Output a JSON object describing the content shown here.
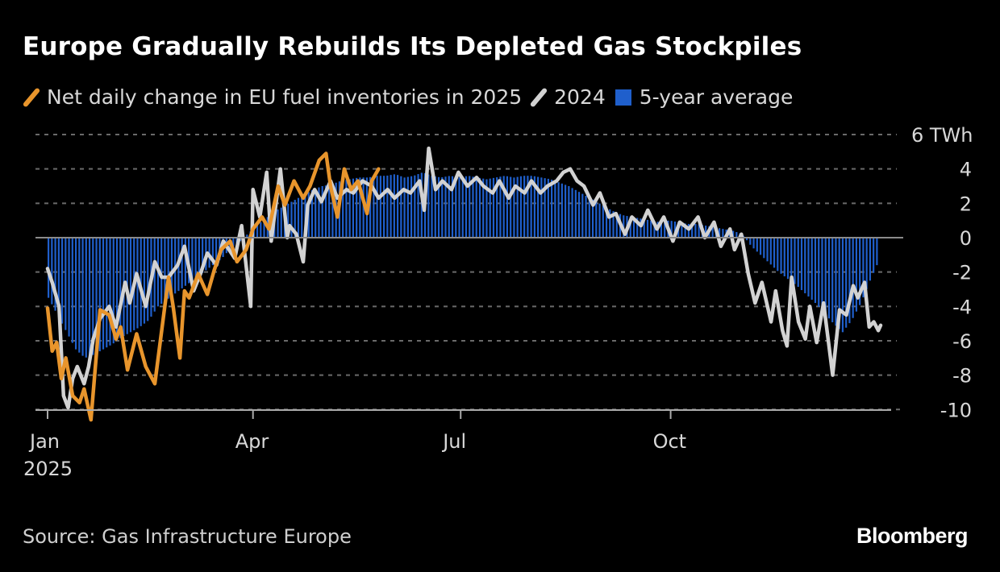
{
  "title": "Europe Gradually Rebuilds Its Depleted Gas Stockpiles",
  "source": "Source: Gas Infrastructure Europe",
  "logo": "Bloomberg",
  "colors": {
    "s2025": "#e8952c",
    "s2024": "#d2d2d2",
    "avg": "#1f5fcc",
    "grid": "#6a6a6a",
    "zero": "#8a8a8a",
    "text": "#d8d8d8"
  },
  "chart_data": {
    "type": "line",
    "ylabel": "TWh",
    "ylim": [
      -10,
      6
    ],
    "yticks": [
      6,
      4,
      2,
      0,
      -2,
      -4,
      -6,
      -8,
      -10
    ],
    "ytick_labels": [
      "6 TWh",
      "4",
      "2",
      "0",
      "-2",
      "-4",
      "-6",
      "-8",
      "-10"
    ],
    "xticks": [
      {
        "day": 0,
        "label": "Jan",
        "sublabel": "2025"
      },
      {
        "day": 90,
        "label": "Apr"
      },
      {
        "day": 181,
        "label": "Jul"
      },
      {
        "day": 273,
        "label": "Oct"
      }
    ],
    "xlim_days": [
      0,
      365
    ],
    "grid": true,
    "legend": "top",
    "series": [
      {
        "name": "Net daily change in EU fuel inventories in 2025",
        "kind": "line",
        "x_day": [
          0,
          2,
          4,
          6,
          8,
          11,
          14,
          16,
          19,
          23,
          27,
          30,
          32,
          35,
          39,
          43,
          47,
          50,
          53,
          55,
          58,
          60,
          62,
          66,
          70,
          73,
          76,
          80,
          83,
          87,
          90,
          94,
          97,
          101,
          104,
          108,
          112,
          115,
          119,
          122,
          124,
          127,
          130,
          133,
          136,
          140,
          142,
          145
        ],
        "values": [
          -4.1,
          -6.6,
          -6.1,
          -8.2,
          -7.0,
          -9.2,
          -9.6,
          -8.8,
          -10.6,
          -4.2,
          -4.5,
          -5.9,
          -5.2,
          -7.7,
          -5.6,
          -7.5,
          -8.5,
          -5.4,
          -2.3,
          -4.0,
          -7.0,
          -3.1,
          -3.5,
          -2.1,
          -3.3,
          -1.9,
          -0.7,
          -0.2,
          -1.4,
          -0.7,
          0.5,
          1.2,
          0.5,
          3.0,
          1.9,
          3.3,
          2.3,
          3.0,
          4.5,
          4.9,
          3.0,
          1.2,
          4.0,
          2.8,
          3.3,
          1.4,
          3.3,
          4.0
        ]
      },
      {
        "name": "2024",
        "kind": "line",
        "x_day": [
          0,
          2,
          5,
          7,
          9,
          11,
          13,
          16,
          18,
          20,
          23,
          27,
          30,
          34,
          36,
          39,
          43,
          47,
          50,
          53,
          57,
          60,
          64,
          67,
          70,
          74,
          77,
          82,
          85,
          89,
          90,
          93,
          96,
          98,
          102,
          105,
          106,
          109,
          112,
          114,
          117,
          120,
          124,
          127,
          131,
          134,
          138,
          142,
          145,
          149,
          152,
          156,
          159,
          163,
          165,
          167,
          170,
          173,
          177,
          180,
          184,
          188,
          191,
          195,
          198,
          202,
          205,
          209,
          212,
          216,
          219,
          223,
          226,
          229,
          232,
          235,
          239,
          242,
          246,
          249,
          253,
          256,
          260,
          263,
          267,
          270,
          274,
          277,
          281,
          285,
          288,
          292,
          295,
          299,
          301,
          304,
          307,
          310,
          313,
          317,
          319,
          322,
          324,
          326,
          329,
          332,
          334,
          337,
          340,
          344,
          347,
          350,
          353,
          355,
          358,
          360,
          362,
          364,
          365
        ],
        "values": [
          -1.8,
          -2.6,
          -4.0,
          -9.2,
          -9.9,
          -8.2,
          -7.5,
          -8.5,
          -7.5,
          -5.9,
          -4.7,
          -4.0,
          -5.2,
          -2.6,
          -3.8,
          -2.1,
          -4.0,
          -1.4,
          -2.3,
          -2.3,
          -1.6,
          -0.5,
          -3.1,
          -2.1,
          -0.9,
          -1.6,
          -0.2,
          -1.2,
          0.7,
          -4.0,
          2.8,
          1.2,
          3.8,
          -0.2,
          4.0,
          0.0,
          0.7,
          0.2,
          -1.4,
          1.9,
          2.8,
          2.1,
          3.3,
          2.3,
          2.8,
          2.6,
          3.3,
          3.0,
          2.3,
          2.8,
          2.3,
          2.8,
          2.6,
          3.3,
          1.6,
          5.2,
          2.8,
          3.3,
          2.8,
          3.8,
          3.0,
          3.5,
          3.0,
          2.6,
          3.3,
          2.3,
          3.0,
          2.6,
          3.3,
          2.6,
          3.0,
          3.3,
          3.8,
          4.0,
          3.3,
          3.0,
          1.9,
          2.6,
          1.2,
          1.4,
          0.2,
          1.2,
          0.7,
          1.6,
          0.5,
          1.2,
          -0.2,
          0.9,
          0.5,
          1.2,
          0.0,
          0.9,
          -0.5,
          0.5,
          -0.7,
          0.2,
          -2.1,
          -3.8,
          -2.6,
          -4.9,
          -3.1,
          -5.4,
          -6.3,
          -2.3,
          -4.9,
          -5.9,
          -4.0,
          -6.1,
          -3.8,
          -8.0,
          -4.2,
          -4.5,
          -2.8,
          -3.5,
          -2.6,
          -5.2,
          -4.9,
          -5.4,
          -5.1
        ]
      },
      {
        "name": "5-year average",
        "kind": "bar",
        "x_day": [
          0,
          4,
          8,
          12,
          16,
          20,
          24,
          28,
          32,
          36,
          40,
          44,
          48,
          52,
          56,
          60,
          64,
          68,
          72,
          76,
          80,
          84,
          88,
          92,
          96,
          100,
          104,
          108,
          112,
          116,
          120,
          124,
          128,
          132,
          136,
          140,
          144,
          148,
          152,
          156,
          160,
          164,
          168,
          172,
          176,
          180,
          184,
          188,
          192,
          196,
          200,
          204,
          208,
          212,
          216,
          220,
          224,
          228,
          232,
          236,
          240,
          244,
          248,
          252,
          256,
          260,
          264,
          268,
          272,
          276,
          280,
          284,
          288,
          292,
          296,
          300,
          304,
          308,
          312,
          316,
          320,
          324,
          328,
          332,
          336,
          340,
          344,
          348,
          352,
          356,
          360,
          363
        ],
        "values": [
          -3.5,
          -4.5,
          -5.5,
          -6.5,
          -7.0,
          -6.8,
          -6.5,
          -6.2,
          -5.8,
          -5.5,
          -5.2,
          -4.8,
          -4.0,
          -3.6,
          -3.2,
          -2.8,
          -2.4,
          -2.0,
          -1.6,
          -1.2,
          -0.6,
          -0.2,
          0.3,
          0.8,
          1.2,
          1.6,
          1.9,
          2.2,
          2.5,
          2.8,
          3.0,
          3.1,
          3.3,
          3.4,
          3.5,
          3.5,
          3.6,
          3.6,
          3.7,
          3.5,
          3.6,
          3.8,
          3.6,
          3.5,
          3.6,
          3.5,
          3.6,
          3.5,
          3.4,
          3.5,
          3.6,
          3.5,
          3.6,
          3.6,
          3.5,
          3.4,
          3.2,
          3.0,
          2.7,
          2.4,
          2.1,
          1.8,
          1.5,
          1.3,
          1.2,
          1.1,
          1.0,
          0.9,
          1.0,
          0.9,
          0.8,
          0.8,
          0.7,
          0.6,
          0.5,
          0.4,
          0.2,
          -0.5,
          -1.0,
          -1.5,
          -2.0,
          -2.4,
          -2.8,
          -3.3,
          -3.8,
          -4.4,
          -5.0,
          -5.5,
          -4.8,
          -3.8,
          -2.5,
          -1.6
        ]
      }
    ]
  }
}
